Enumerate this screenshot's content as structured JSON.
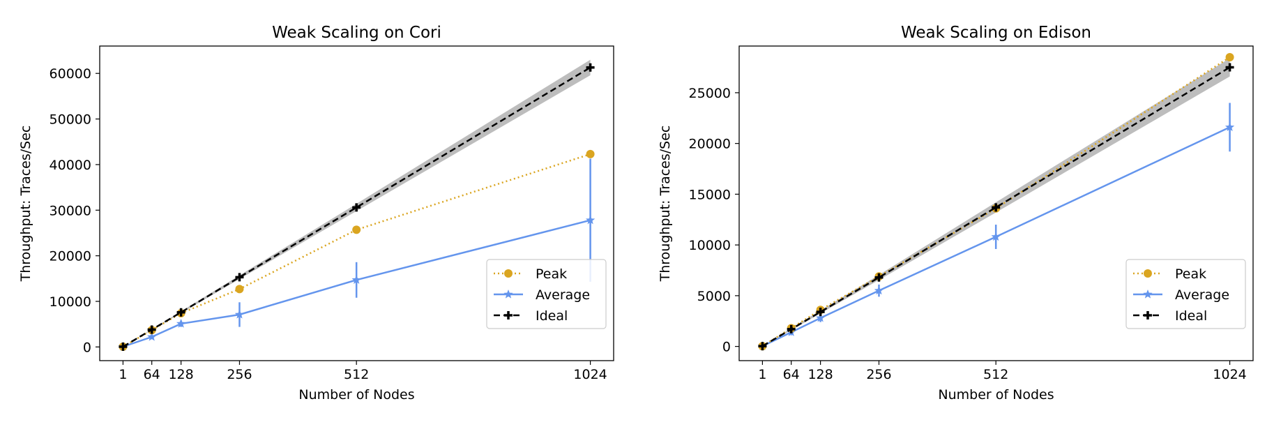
{
  "chart_data": [
    {
      "type": "line",
      "title": "Weak Scaling on Cori",
      "xlabel": "Number of Nodes",
      "ylabel": "Throughput: Traces/Sec",
      "xlim": [
        -50,
        1075
      ],
      "ylim": [
        -3000,
        66000
      ],
      "x_ticks": [
        1,
        64,
        128,
        256,
        512,
        1024
      ],
      "y_ticks": [
        0,
        10000,
        20000,
        30000,
        40000,
        50000,
        60000
      ],
      "legend_position": "lower right",
      "series": [
        {
          "name": "Peak",
          "color": "#DAA520",
          "line": "dotted",
          "marker": "circle",
          "x": [
            1,
            64,
            128,
            256,
            512,
            1024
          ],
          "y": [
            60,
            3700,
            7400,
            12700,
            25700,
            42300
          ]
        },
        {
          "name": "Average",
          "color": "#6495ED",
          "line": "solid",
          "marker": "star",
          "x": [
            1,
            64,
            128,
            256,
            512,
            1024
          ],
          "y": [
            60,
            2200,
            5100,
            7100,
            14700,
            27800
          ],
          "error": [
            0,
            500,
            700,
            2700,
            3900,
            13500
          ]
        },
        {
          "name": "Ideal",
          "color": "#000000",
          "line": "dashed",
          "marker": "plus",
          "x": [
            1,
            64,
            128,
            256,
            512,
            1024
          ],
          "y": [
            60,
            3800,
            7600,
            15300,
            30600,
            61300
          ],
          "band": [
            0,
            100,
            200,
            400,
            800,
            1700
          ]
        }
      ]
    },
    {
      "type": "line",
      "title": "Weak Scaling on Edison",
      "xlabel": "Number of Nodes",
      "ylabel": "Throughput: Traces/Sec",
      "xlim": [
        -50,
        1075
      ],
      "ylim": [
        -1400,
        29600
      ],
      "x_ticks": [
        1,
        64,
        128,
        256,
        512,
        1024
      ],
      "y_ticks": [
        0,
        5000,
        10000,
        15000,
        20000,
        25000
      ],
      "legend_position": "lower right",
      "series": [
        {
          "name": "Peak",
          "color": "#DAA520",
          "line": "dotted",
          "marker": "circle",
          "x": [
            1,
            64,
            128,
            256,
            512,
            1024
          ],
          "y": [
            30,
            1800,
            3600,
            6900,
            13600,
            28500
          ]
        },
        {
          "name": "Average",
          "color": "#6495ED",
          "line": "solid",
          "marker": "star",
          "x": [
            1,
            64,
            128,
            256,
            512,
            1024
          ],
          "y": [
            30,
            1400,
            2800,
            5500,
            10800,
            21600
          ],
          "error": [
            0,
            300,
            400,
            600,
            1200,
            2400
          ]
        },
        {
          "name": "Ideal",
          "color": "#000000",
          "line": "dashed",
          "marker": "plus",
          "x": [
            1,
            64,
            128,
            256,
            512,
            1024
          ],
          "y": [
            30,
            1700,
            3400,
            6800,
            13700,
            27500
          ],
          "band": [
            0,
            100,
            150,
            250,
            500,
            900
          ]
        }
      ]
    }
  ]
}
